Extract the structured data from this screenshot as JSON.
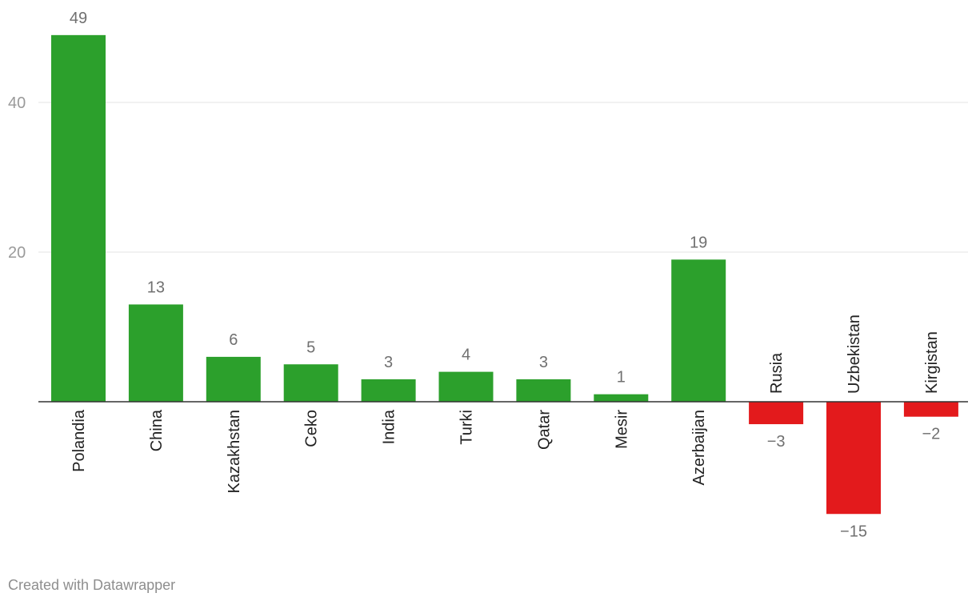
{
  "chart_data": {
    "type": "bar",
    "categories": [
      "Polandia",
      "China",
      "Kazakhstan",
      "Ceko",
      "India",
      "Turki",
      "Qatar",
      "Mesir",
      "Azerbaijan",
      "Rusia",
      "Uzbekistan",
      "Kirgistan"
    ],
    "values": [
      49,
      13,
      6,
      5,
      3,
      4,
      3,
      1,
      19,
      -3,
      -15,
      -2
    ],
    "value_labels": [
      "49",
      "13",
      "6",
      "5",
      "3",
      "4",
      "3",
      "1",
      "19",
      "−3",
      "−15",
      "−2"
    ],
    "y_ticks": [
      20,
      40
    ],
    "y_tick_labels": [
      "20",
      "40"
    ],
    "ylim": [
      -15,
      49
    ],
    "grid": true,
    "legend": "none",
    "colors": {
      "positive": "#2ca02c",
      "negative": "#e31a1c"
    }
  },
  "footer": {
    "credit": "Created with Datawrapper"
  }
}
